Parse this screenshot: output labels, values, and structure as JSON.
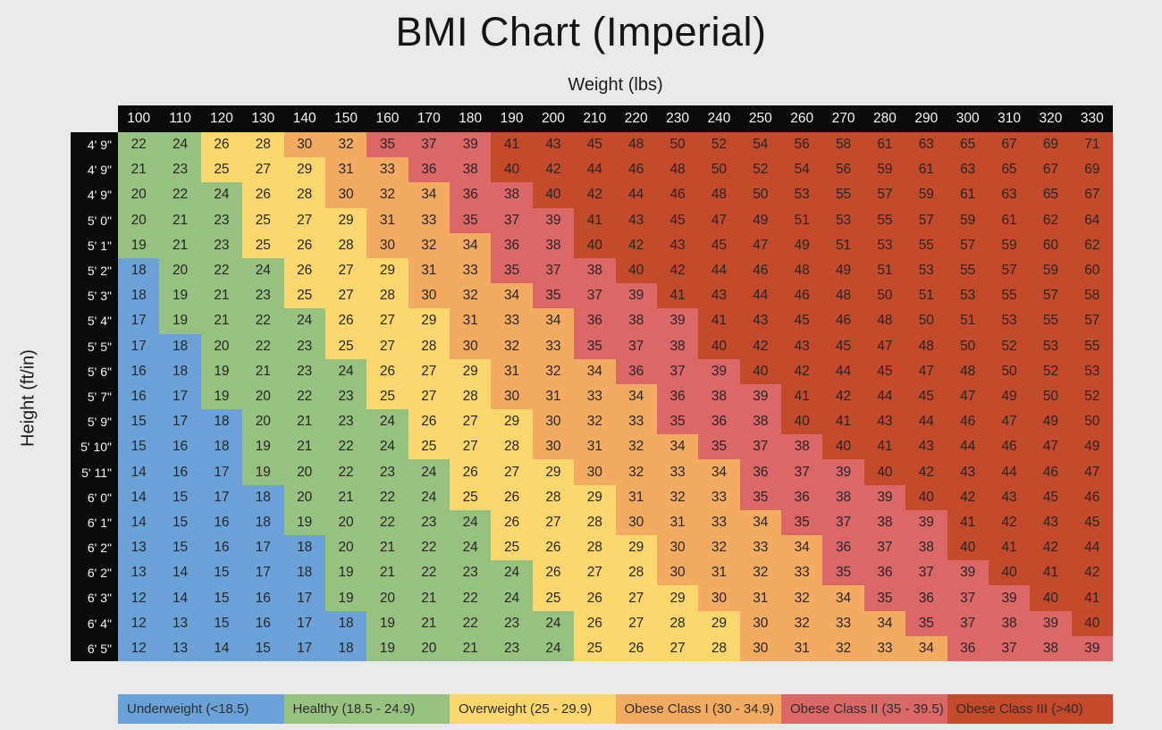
{
  "title": "BMI Chart (Imperial)",
  "chart_data": {
    "type": "heatmap",
    "title": "BMI Chart (Imperial)",
    "xlabel": "Weight (lbs)",
    "ylabel": "Height (ft/in)",
    "legend_position": "bottom",
    "grid": false,
    "weights_lbs": [
      100,
      110,
      120,
      130,
      140,
      150,
      160,
      170,
      180,
      190,
      200,
      210,
      220,
      230,
      240,
      250,
      260,
      270,
      280,
      290,
      300,
      310,
      320,
      330
    ],
    "heights_ftin": [
      "4' 9\"",
      "4' 9\"",
      "4' 9\"",
      "5' 0\"",
      "5' 1\"",
      "5' 2\"",
      "5' 3\"",
      "5' 4\"",
      "5' 5\"",
      "5' 6\"",
      "5' 7\"",
      "5' 9\"",
      "5' 10\"",
      "5' 11\"",
      "6' 0\"",
      "6' 1\"",
      "6' 2\"",
      "6' 2\"",
      "6' 3\"",
      "6' 4\"",
      "6' 5\""
    ],
    "bmi_values": [
      [
        22,
        24,
        26,
        28,
        30,
        32,
        35,
        37,
        39,
        41,
        43,
        45,
        48,
        50,
        52,
        54,
        56,
        58,
        61,
        63,
        65,
        67,
        69,
        71
      ],
      [
        21,
        23,
        25,
        27,
        29,
        31,
        33,
        36,
        38,
        40,
        42,
        44,
        46,
        48,
        50,
        52,
        54,
        56,
        59,
        61,
        63,
        65,
        67,
        69
      ],
      [
        20,
        22,
        24,
        26,
        28,
        30,
        32,
        34,
        36,
        38,
        40,
        42,
        44,
        46,
        48,
        50,
        53,
        55,
        57,
        59,
        61,
        63,
        65,
        67
      ],
      [
        20,
        21,
        23,
        25,
        27,
        29,
        31,
        33,
        35,
        37,
        39,
        41,
        43,
        45,
        47,
        49,
        51,
        53,
        55,
        57,
        59,
        61,
        62,
        64
      ],
      [
        19,
        21,
        23,
        25,
        26,
        28,
        30,
        32,
        34,
        36,
        38,
        40,
        42,
        43,
        45,
        47,
        49,
        51,
        53,
        55,
        57,
        59,
        60,
        62
      ],
      [
        18,
        20,
        22,
        24,
        26,
        27,
        29,
        31,
        33,
        35,
        37,
        38,
        40,
        42,
        44,
        46,
        48,
        49,
        51,
        53,
        55,
        57,
        59,
        60
      ],
      [
        18,
        19,
        21,
        23,
        25,
        27,
        28,
        30,
        32,
        34,
        35,
        37,
        39,
        41,
        43,
        44,
        46,
        48,
        50,
        51,
        53,
        55,
        57,
        58
      ],
      [
        17,
        19,
        21,
        22,
        24,
        26,
        27,
        29,
        31,
        33,
        34,
        36,
        38,
        39,
        41,
        43,
        45,
        46,
        48,
        50,
        51,
        53,
        55,
        57
      ],
      [
        17,
        18,
        20,
        22,
        23,
        25,
        27,
        28,
        30,
        32,
        33,
        35,
        37,
        38,
        40,
        42,
        43,
        45,
        47,
        48,
        50,
        52,
        53,
        55
      ],
      [
        16,
        18,
        19,
        21,
        23,
        24,
        26,
        27,
        29,
        31,
        32,
        34,
        36,
        37,
        39,
        40,
        42,
        44,
        45,
        47,
        48,
        50,
        52,
        53
      ],
      [
        16,
        17,
        19,
        20,
        22,
        23,
        25,
        27,
        28,
        30,
        31,
        33,
        34,
        36,
        38,
        39,
        41,
        42,
        44,
        45,
        47,
        49,
        50,
        52
      ],
      [
        15,
        17,
        18,
        20,
        21,
        23,
        24,
        26,
        27,
        29,
        30,
        32,
        33,
        35,
        36,
        38,
        40,
        41,
        43,
        44,
        46,
        47,
        49,
        50
      ],
      [
        15,
        16,
        18,
        19,
        21,
        22,
        24,
        25,
        27,
        28,
        30,
        31,
        32,
        34,
        35,
        37,
        38,
        40,
        41,
        43,
        44,
        46,
        47,
        49
      ],
      [
        14,
        16,
        17,
        19,
        20,
        22,
        23,
        24,
        26,
        27,
        29,
        30,
        32,
        33,
        34,
        36,
        37,
        39,
        40,
        42,
        43,
        44,
        46,
        47
      ],
      [
        14,
        15,
        17,
        18,
        20,
        21,
        22,
        24,
        25,
        26,
        28,
        29,
        31,
        32,
        33,
        35,
        36,
        38,
        39,
        40,
        42,
        43,
        45,
        46
      ],
      [
        14,
        15,
        16,
        18,
        19,
        20,
        22,
        23,
        24,
        26,
        27,
        28,
        30,
        31,
        33,
        34,
        35,
        37,
        38,
        39,
        41,
        42,
        43,
        45
      ],
      [
        13,
        15,
        16,
        17,
        18,
        20,
        21,
        22,
        24,
        25,
        26,
        28,
        29,
        30,
        32,
        33,
        34,
        36,
        37,
        38,
        40,
        41,
        42,
        44
      ],
      [
        13,
        14,
        15,
        17,
        18,
        19,
        21,
        22,
        23,
        24,
        26,
        27,
        28,
        30,
        31,
        32,
        33,
        35,
        36,
        37,
        39,
        40,
        41,
        42
      ],
      [
        12,
        14,
        15,
        16,
        17,
        19,
        20,
        21,
        22,
        24,
        25,
        26,
        27,
        29,
        30,
        31,
        32,
        34,
        35,
        36,
        37,
        39,
        40,
        41
      ],
      [
        12,
        13,
        15,
        16,
        17,
        18,
        19,
        21,
        22,
        23,
        24,
        26,
        27,
        28,
        29,
        30,
        32,
        33,
        34,
        35,
        37,
        38,
        39,
        40
      ],
      [
        12,
        13,
        14,
        15,
        17,
        18,
        19,
        20,
        21,
        23,
        24,
        25,
        26,
        27,
        28,
        30,
        31,
        32,
        33,
        34,
        36,
        37,
        38,
        39
      ]
    ],
    "categories": [
      {
        "label": "Underweight (<18.5)",
        "color": "#6aa2d8",
        "max_rounded_value": 18
      },
      {
        "label": "Healthy (18.5 - 24.9)",
        "color": "#97c17f",
        "max_rounded_value": 24
      },
      {
        "label": "Overweight (25 - 29.9)",
        "color": "#fbd76e",
        "max_rounded_value": 29
      },
      {
        "label": "Obese Class I (30 - 34.9)",
        "color": "#f3aa61",
        "max_rounded_value": 34
      },
      {
        "label": "Obese Class II (35 - 39.5)",
        "color": "#dc6767",
        "max_rounded_value": 39
      },
      {
        "label": "Obese Class III (>40)",
        "color": "#c44a2c",
        "max_rounded_value": 999
      }
    ],
    "header_bg_color": "#0b0b0b",
    "background_color": "#e9e9e9"
  }
}
